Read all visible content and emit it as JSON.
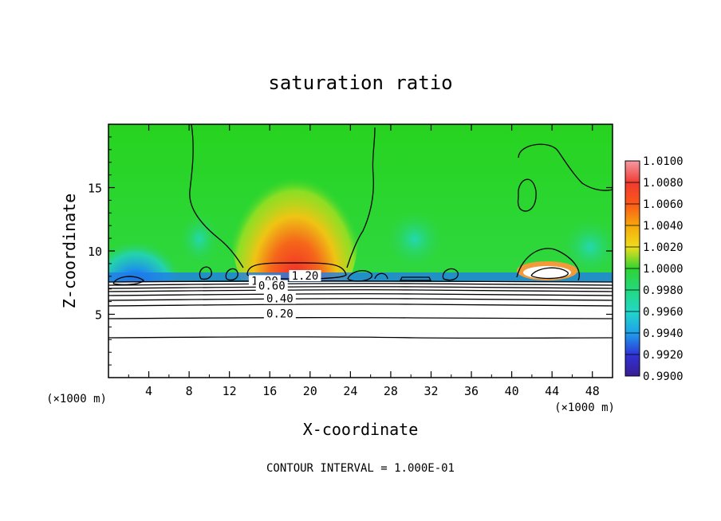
{
  "chart_data": {
    "type": "heatmap",
    "title": "saturation ratio",
    "xlabel": "X-coordinate",
    "ylabel": "Z-coordinate",
    "x_unit": "(×1000 m)",
    "z_unit": "(×1000 m)",
    "xlim": [
      0,
      50
    ],
    "ylim": [
      0,
      20
    ],
    "x_ticks": [
      4,
      8,
      12,
      16,
      20,
      24,
      28,
      32,
      36,
      40,
      44,
      48
    ],
    "y_ticks": [
      5,
      10,
      15
    ],
    "footer": "CONTOUR INTERVAL = 1.000E-01",
    "colorbar": {
      "levels": [
        "1.0100",
        "1.0080",
        "1.0060",
        "1.0040",
        "1.0020",
        "1.0000",
        "0.9980",
        "0.9960",
        "0.9940",
        "0.9920",
        "0.9900"
      ],
      "values": [
        1.01,
        1.008,
        1.006,
        1.004,
        1.002,
        1.0,
        0.998,
        0.996,
        0.994,
        0.992,
        0.99
      ],
      "colors": [
        "#f49aa4",
        "#f03a30",
        "#fb5a18",
        "#f6a80a",
        "#eedd1d",
        "#2fd432",
        "#23d87e",
        "#22d7c8",
        "#1da0ec",
        "#2f33d6",
        "#3a1c93"
      ]
    },
    "contour_labels": [
      {
        "x": 19.5,
        "z": 7.8,
        "text": "1.20"
      },
      {
        "x": 15.5,
        "z": 7.4,
        "text": "1.00"
      },
      {
        "x": 16.2,
        "z": 7.0,
        "text": "0.60"
      },
      {
        "x": 17.0,
        "z": 6.0,
        "text": "0.40"
      },
      {
        "x": 17.0,
        "z": 4.8,
        "text": "0.20"
      }
    ]
  }
}
